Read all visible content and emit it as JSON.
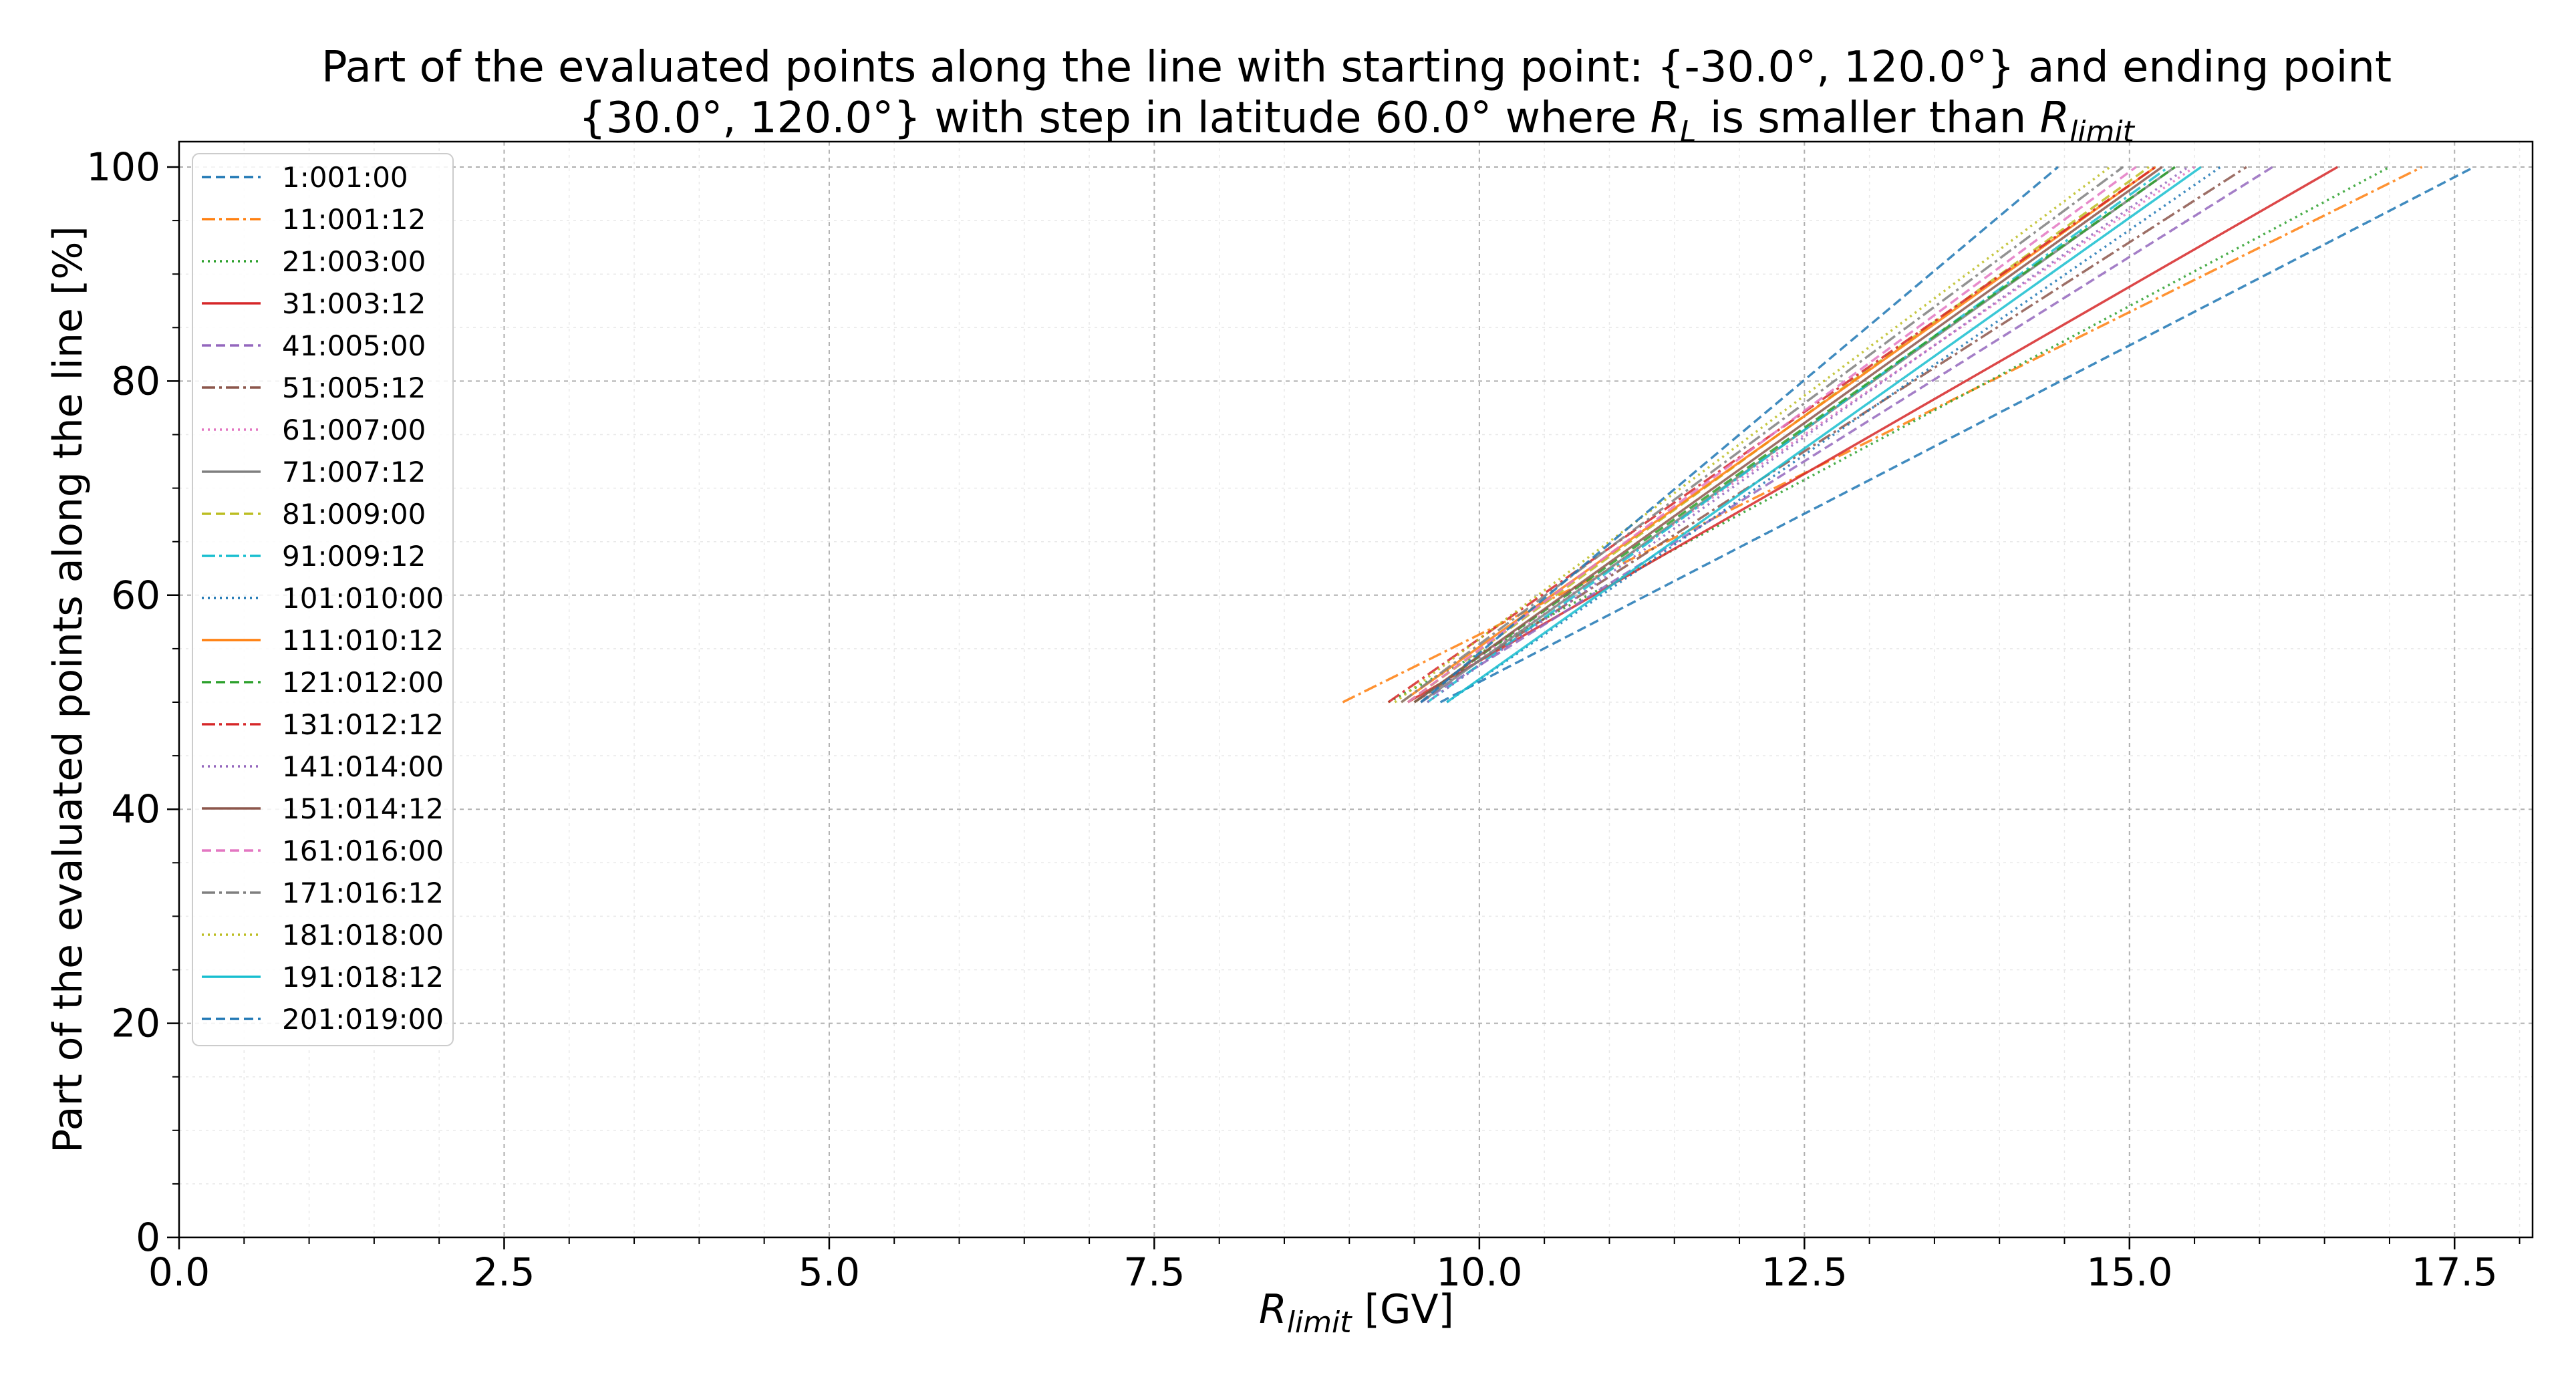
{
  "chart_data": {
    "type": "line",
    "title_line1": "Part of the evaluated points along the line with starting point: {-30.0°, 120.0°} and ending point",
    "title_line2_prefix": "{30.0°, 120.0°} with step in latitude 60.0° where ",
    "title_line2_rl": "R",
    "title_line2_rl_sub": "L",
    "title_line2_mid": " is smaller than ",
    "title_line2_rlimit": "R",
    "title_line2_rlimit_sub": "limit",
    "xlabel_main": "R",
    "xlabel_sub": "limit",
    "xlabel_unit": " [GV]",
    "ylabel": "Part of the evaluated points along the line  [%]",
    "xlim": [
      0,
      18.1
    ],
    "ylim": [
      0,
      100
    ],
    "xticks": [
      0,
      2.5,
      5,
      7.5,
      10,
      12.5,
      15,
      17.5
    ],
    "xtick_labels": [
      "0.0",
      "2.5",
      "5.0",
      "7.5",
      "10.0",
      "12.5",
      "15.0",
      "17.5"
    ],
    "yticks": [
      0,
      20,
      40,
      60,
      80,
      100
    ],
    "ytick_labels": [
      "0",
      "20",
      "40",
      "60",
      "80",
      "100"
    ],
    "grid": true,
    "legend_position": "upper-left",
    "series": [
      {
        "name": "1:001:00",
        "color": "#1f77b4",
        "dash": "dashed",
        "x": [
          9.7,
          17.65
        ],
        "y": [
          50,
          100
        ]
      },
      {
        "name": "11:001:12",
        "color": "#ff7f0e",
        "dash": "dashdot",
        "x": [
          8.95,
          17.25
        ],
        "y": [
          50,
          100
        ]
      },
      {
        "name": "21:003:00",
        "color": "#2ca02c",
        "dash": "dotted",
        "x": [
          9.3,
          17.0
        ],
        "y": [
          50,
          100
        ]
      },
      {
        "name": "31:003:12",
        "color": "#d62728",
        "dash": "solid",
        "x": [
          9.45,
          16.6
        ],
        "y": [
          50,
          100
        ]
      },
      {
        "name": "41:005:00",
        "color": "#9467bd",
        "dash": "dashed",
        "x": [
          9.55,
          16.1
        ],
        "y": [
          50,
          100
        ]
      },
      {
        "name": "51:005:12",
        "color": "#8c564b",
        "dash": "dashdot",
        "x": [
          9.5,
          15.9
        ],
        "y": [
          50,
          100
        ]
      },
      {
        "name": "61:007:00",
        "color": "#e377c2",
        "dash": "dotted",
        "x": [
          9.5,
          15.5
        ],
        "y": [
          50,
          100
        ]
      },
      {
        "name": "71:007:12",
        "color": "#7f7f7f",
        "dash": "solid",
        "x": [
          9.55,
          15.35
        ],
        "y": [
          50,
          100
        ]
      },
      {
        "name": "81:009:00",
        "color": "#bcbd22",
        "dash": "dashed",
        "x": [
          9.45,
          15.15
        ],
        "y": [
          50,
          100
        ]
      },
      {
        "name": "91:009:12",
        "color": "#17becf",
        "dash": "dashdot",
        "x": [
          9.6,
          15.3
        ],
        "y": [
          50,
          100
        ]
      },
      {
        "name": "101:010:00",
        "color": "#1f77b4",
        "dash": "dotted",
        "x": [
          9.75,
          15.7
        ],
        "y": [
          50,
          100
        ]
      },
      {
        "name": "111:010:12",
        "color": "#ff7f0e",
        "dash": "solid",
        "x": [
          9.4,
          15.2
        ],
        "y": [
          50,
          100
        ]
      },
      {
        "name": "121:012:00",
        "color": "#2ca02c",
        "dash": "dashed",
        "x": [
          9.5,
          15.35
        ],
        "y": [
          50,
          100
        ]
      },
      {
        "name": "131:012:12",
        "color": "#d62728",
        "dash": "dashdot",
        "x": [
          9.3,
          15.2
        ],
        "y": [
          50,
          100
        ]
      },
      {
        "name": "141:014:00",
        "color": "#9467bd",
        "dash": "dotted",
        "x": [
          9.6,
          15.45
        ],
        "y": [
          50,
          100
        ]
      },
      {
        "name": "151:014:12",
        "color": "#8c564b",
        "dash": "solid",
        "x": [
          9.5,
          15.25
        ],
        "y": [
          50,
          100
        ]
      },
      {
        "name": "161:016:00",
        "color": "#e377c2",
        "dash": "dashed",
        "x": [
          9.45,
          15.05
        ],
        "y": [
          50,
          100
        ]
      },
      {
        "name": "171:016:12",
        "color": "#7f7f7f",
        "dash": "dashdot",
        "x": [
          9.4,
          14.95
        ],
        "y": [
          50,
          100
        ]
      },
      {
        "name": "181:018:00",
        "color": "#bcbd22",
        "dash": "dotted",
        "x": [
          9.35,
          14.85
        ],
        "y": [
          50,
          100
        ]
      },
      {
        "name": "191:018:12",
        "color": "#17becf",
        "dash": "solid",
        "x": [
          9.75,
          15.55
        ],
        "y": [
          50,
          100
        ]
      },
      {
        "name": "201:019:00",
        "color": "#1f77b4",
        "dash": "dashed",
        "x": [
          9.55,
          14.45
        ],
        "y": [
          50,
          100
        ]
      }
    ]
  }
}
